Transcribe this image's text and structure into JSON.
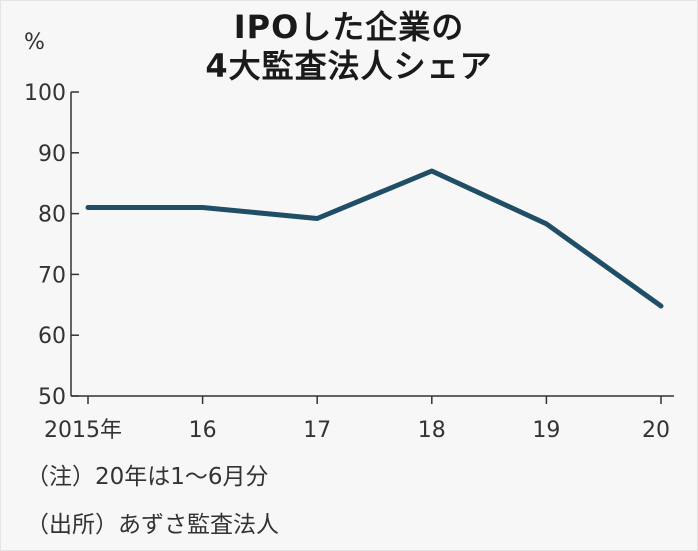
{
  "title": {
    "line1": "IPOした企業の",
    "line2": "4大監査法人シェア"
  },
  "unit_label": "%",
  "notes": {
    "note": "（注）20年は1～6月分",
    "source": "（出所）あずさ監査法人"
  },
  "colors": {
    "line": "#1f4e66",
    "axis": "#333333",
    "background": "#f7f7f7"
  },
  "chart_data": {
    "type": "line",
    "title": "IPOした企業の4大監査法人シェア",
    "xlabel": "",
    "ylabel": "%",
    "categories": [
      "2015年",
      "16",
      "17",
      "18",
      "19",
      "20"
    ],
    "yticks": [
      50,
      60,
      70,
      80,
      90,
      100
    ],
    "ylim": [
      50,
      100
    ],
    "grid": false,
    "series": [
      {
        "name": "4大監査法人シェア",
        "values": [
          81.0,
          81.0,
          79.2,
          87.0,
          78.3,
          64.8
        ]
      }
    ]
  }
}
